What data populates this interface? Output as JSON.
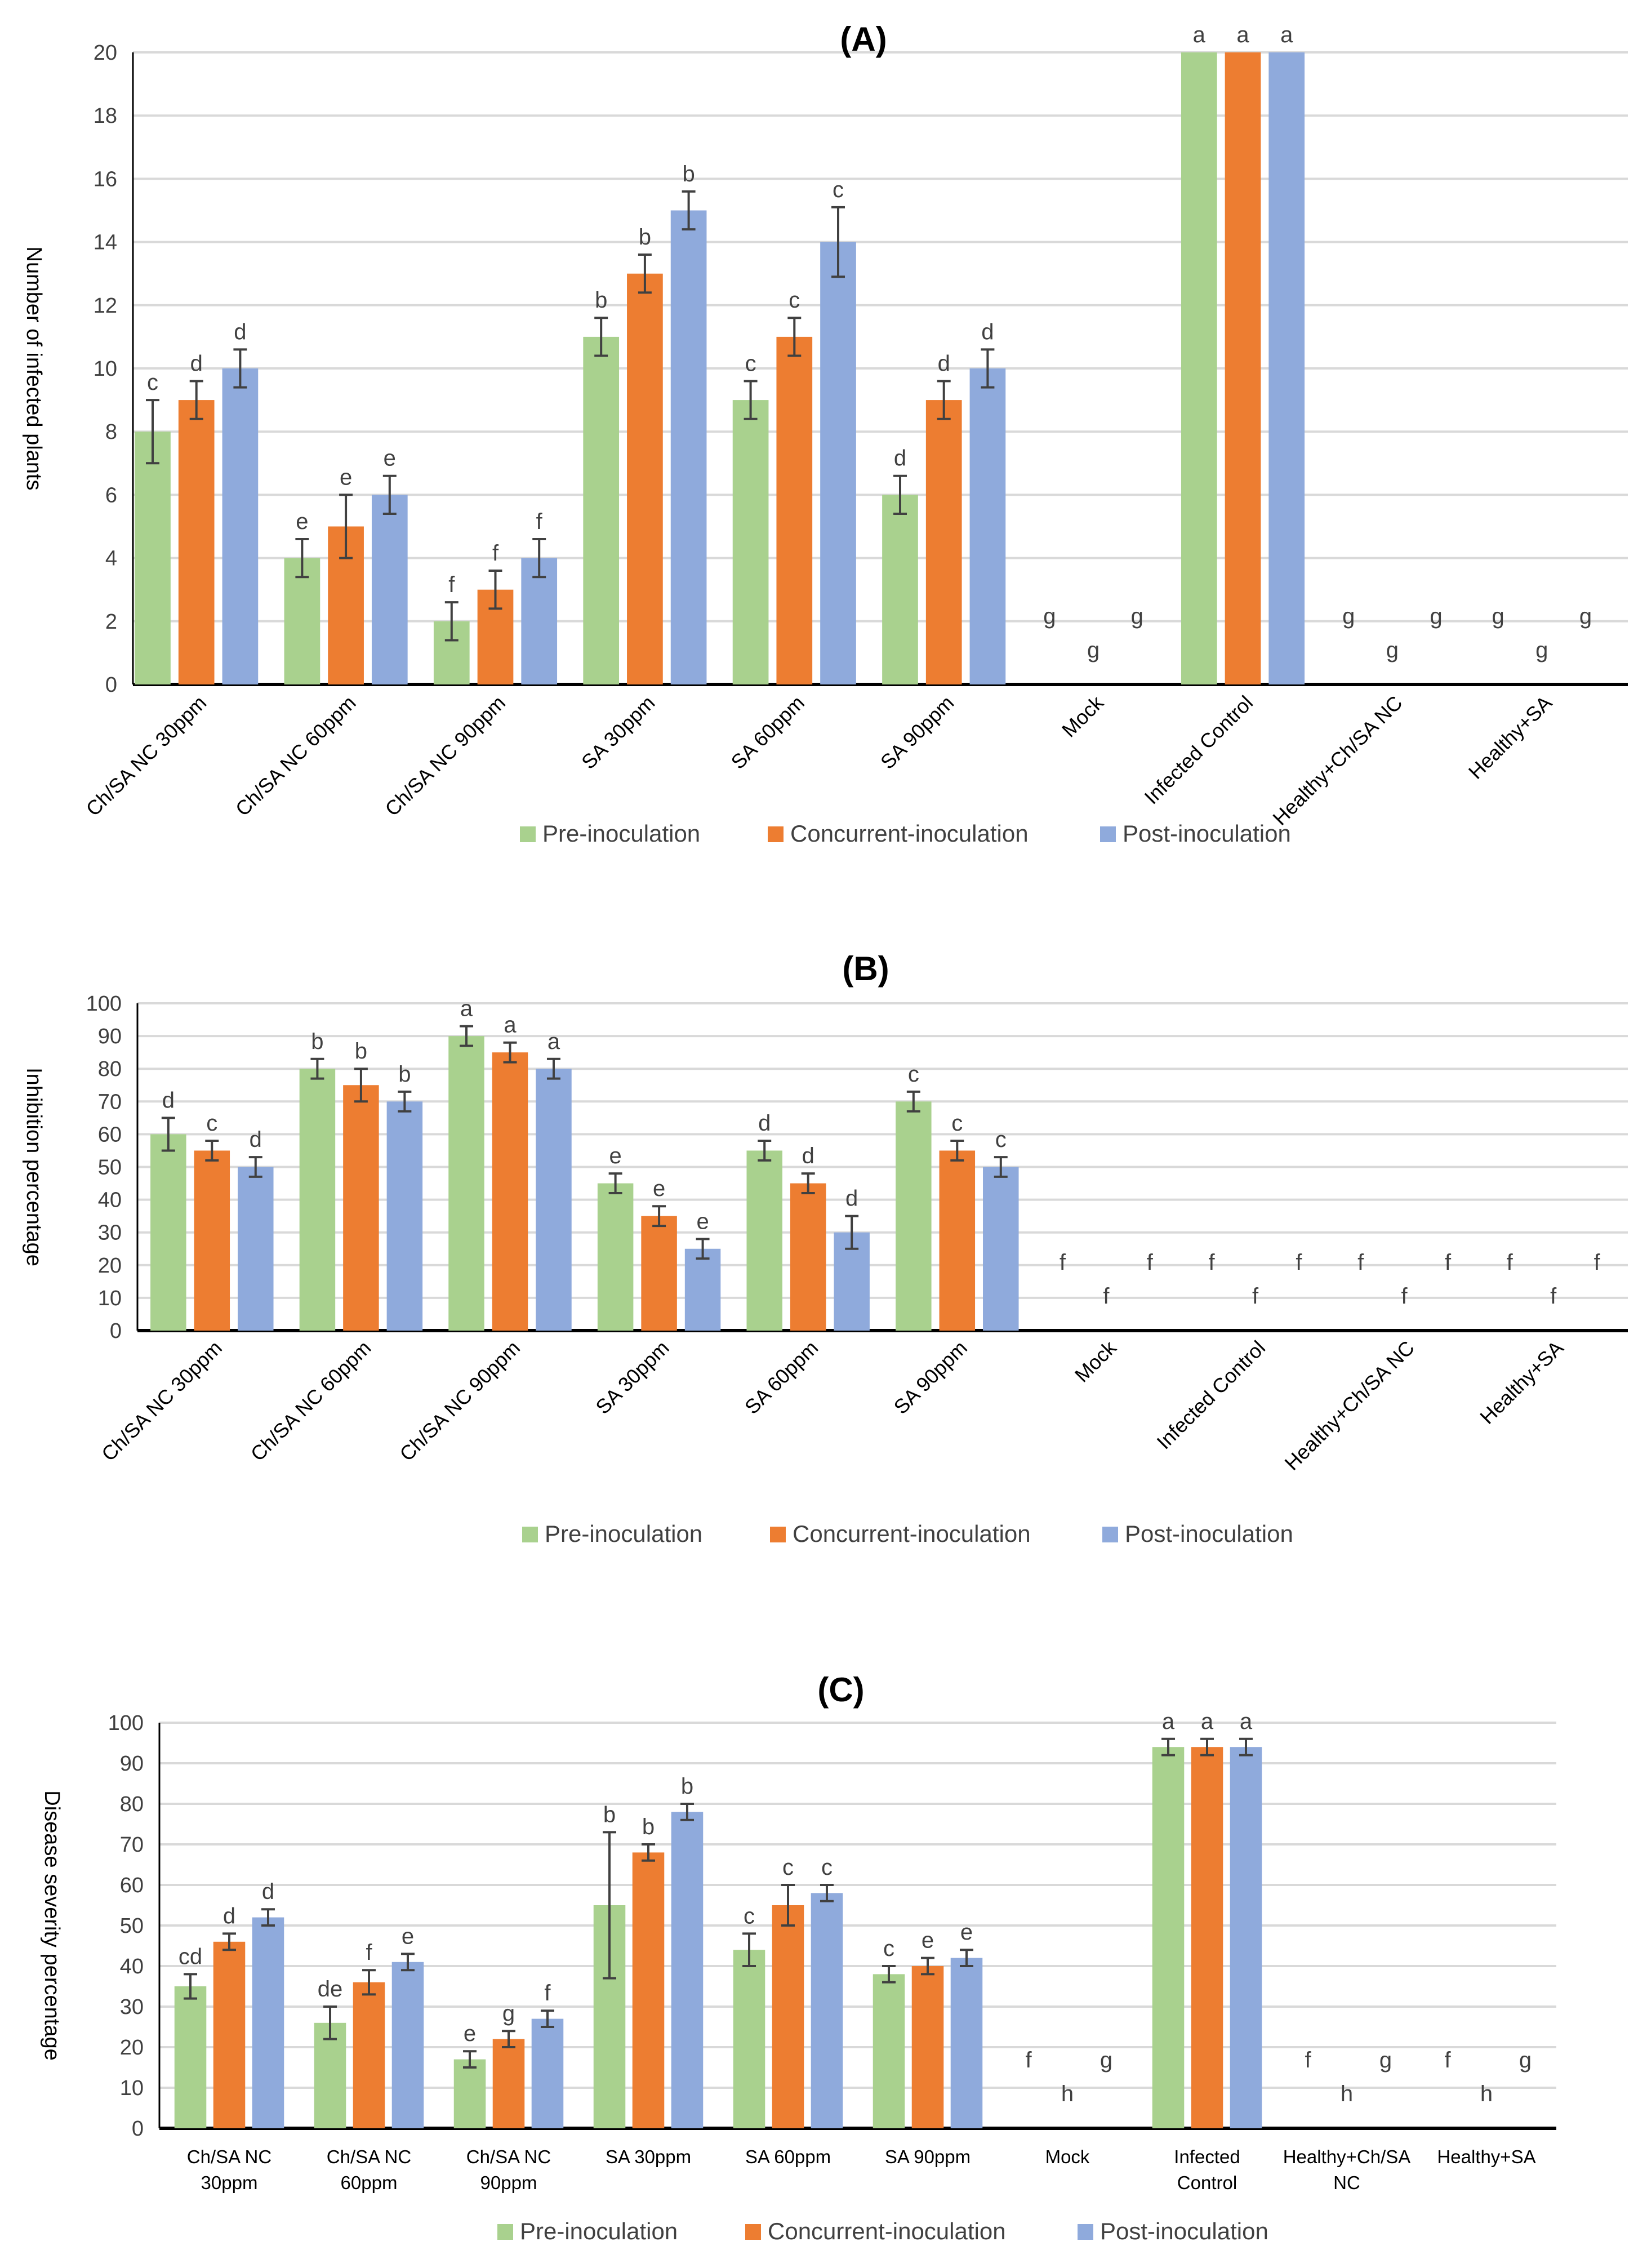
{
  "colors": {
    "pre": "#a9d18e",
    "concurrent": "#ed7d31",
    "post": "#8faadc",
    "grid": "#d9d9d9",
    "axis": "#000000",
    "errorbar": "#404040"
  },
  "chart_data": [
    {
      "type": "bar",
      "title": "(A)",
      "xlabel": "",
      "ylabel": "Number of infected plants",
      "ylim": [
        0,
        20
      ],
      "yticks": [
        0,
        2,
        4,
        6,
        8,
        10,
        12,
        14,
        16,
        18,
        20
      ],
      "grid": true,
      "legend_position": "bottom",
      "categories": [
        "Ch/SA NC 30ppm",
        "Ch/SA NC 60ppm",
        "Ch/SA NC 90ppm",
        "SA 30ppm",
        "SA 60ppm",
        "SA 90ppm",
        "Mock",
        "Infected Control",
        "Healthy+Ch/SA NC",
        "Healthy+SA"
      ],
      "series": [
        {
          "name": "Pre-inoculation",
          "values": [
            8,
            4,
            2,
            11,
            9,
            6,
            0,
            20,
            0,
            0
          ],
          "errors": [
            1,
            0.6,
            0.6,
            0.6,
            0.6,
            0.6,
            0,
            0,
            0,
            0
          ],
          "letters": [
            "c",
            "e",
            "f",
            "b",
            "c",
            "d",
            "g",
            "a",
            "g",
            "g"
          ]
        },
        {
          "name": "Concurrent-inoculation",
          "values": [
            9,
            5,
            3,
            13,
            11,
            9,
            0,
            20,
            0,
            0
          ],
          "errors": [
            0.6,
            1,
            0.6,
            0.6,
            0.6,
            0.6,
            0,
            0,
            0,
            0
          ],
          "letters": [
            "d",
            "e",
            "f",
            "b",
            "c",
            "d",
            "g",
            "a",
            "g",
            "g"
          ]
        },
        {
          "name": "Post-inoculation",
          "values": [
            10,
            6,
            4,
            15,
            14,
            10,
            0,
            20,
            0,
            0
          ],
          "errors": [
            0.6,
            0.6,
            0.6,
            0.6,
            1.1,
            0.6,
            0,
            0,
            0,
            0
          ],
          "letters": [
            "d",
            "e",
            "f",
            "b",
            "c",
            "d",
            "g",
            "a",
            "g",
            "g"
          ]
        }
      ]
    },
    {
      "type": "bar",
      "title": "(B)",
      "xlabel": "",
      "ylabel": "Inhibition percentage",
      "ylim": [
        0,
        100
      ],
      "yticks": [
        0,
        10,
        20,
        30,
        40,
        50,
        60,
        70,
        80,
        90,
        100
      ],
      "grid": true,
      "legend_position": "bottom",
      "categories": [
        "Ch/SA NC 30ppm",
        "Ch/SA NC 60ppm",
        "Ch/SA NC 90ppm",
        "SA 30ppm",
        "SA 60ppm",
        "SA 90ppm",
        "Mock",
        "Infected Control",
        "Healthy+Ch/SA NC",
        "Healthy+SA"
      ],
      "series": [
        {
          "name": "Pre-inoculation",
          "values": [
            60,
            80,
            90,
            45,
            55,
            70,
            0,
            0,
            0,
            0
          ],
          "errors": [
            5,
            3,
            3,
            3,
            3,
            3,
            0,
            0,
            0,
            0
          ],
          "letters": [
            "d",
            "b",
            "a",
            "e",
            "d",
            "c",
            "f",
            "f",
            "f",
            "f"
          ]
        },
        {
          "name": "Concurrent-inoculation",
          "values": [
            55,
            75,
            85,
            35,
            45,
            55,
            0,
            0,
            0,
            0
          ],
          "errors": [
            3,
            5,
            3,
            3,
            3,
            3,
            0,
            0,
            0,
            0
          ],
          "letters": [
            "c",
            "b",
            "a",
            "e",
            "d",
            "c",
            "f",
            "f",
            "f",
            "f"
          ]
        },
        {
          "name": "Post-inoculation",
          "values": [
            50,
            70,
            80,
            25,
            30,
            50,
            0,
            0,
            0,
            0
          ],
          "errors": [
            3,
            3,
            3,
            3,
            5,
            3,
            0,
            0,
            0,
            0
          ],
          "letters": [
            "d",
            "b",
            "a",
            "e",
            "d",
            "c",
            "f",
            "f",
            "f",
            "f"
          ]
        }
      ]
    },
    {
      "type": "bar",
      "title": "(C)",
      "xlabel": "",
      "ylabel": "Disease severity percentage",
      "ylim": [
        0,
        100
      ],
      "yticks": [
        0,
        10,
        20,
        30,
        40,
        50,
        60,
        70,
        80,
        90,
        100
      ],
      "grid": true,
      "legend_position": "bottom",
      "categories": [
        "Ch/SA NC 30ppm",
        "Ch/SA NC 60ppm",
        "Ch/SA NC 90ppm",
        "SA 30ppm",
        "SA 60ppm",
        "SA 90ppm",
        "Mock",
        "Infected Control",
        "Healthy+Ch/SA NC",
        "Healthy+SA"
      ],
      "series": [
        {
          "name": "Pre-inoculation",
          "values": [
            35,
            26,
            17,
            55,
            44,
            38,
            0,
            94,
            0,
            0
          ],
          "errors": [
            3,
            4,
            2,
            18,
            4,
            2,
            0,
            2,
            0,
            0
          ],
          "letters": [
            "cd",
            "de",
            "e",
            "b",
            "c",
            "c",
            "f",
            "a",
            "f",
            "f"
          ]
        },
        {
          "name": "Concurrent-inoculation",
          "values": [
            46,
            36,
            22,
            68,
            55,
            40,
            0,
            94,
            0,
            0
          ],
          "errors": [
            2,
            3,
            2,
            2,
            5,
            2,
            0,
            2,
            0,
            0
          ],
          "letters": [
            "d",
            "f",
            "g",
            "b",
            "c",
            "e",
            "h",
            "a",
            "h",
            "h"
          ]
        },
        {
          "name": "Post-inoculation",
          "values": [
            52,
            41,
            27,
            78,
            58,
            42,
            0,
            94,
            0,
            0
          ],
          "errors": [
            2,
            2,
            2,
            2,
            2,
            2,
            0,
            2,
            0,
            0
          ],
          "letters": [
            "d",
            "e",
            "f",
            "b",
            "c",
            "e",
            "g",
            "a",
            "g",
            "g"
          ]
        }
      ]
    }
  ]
}
